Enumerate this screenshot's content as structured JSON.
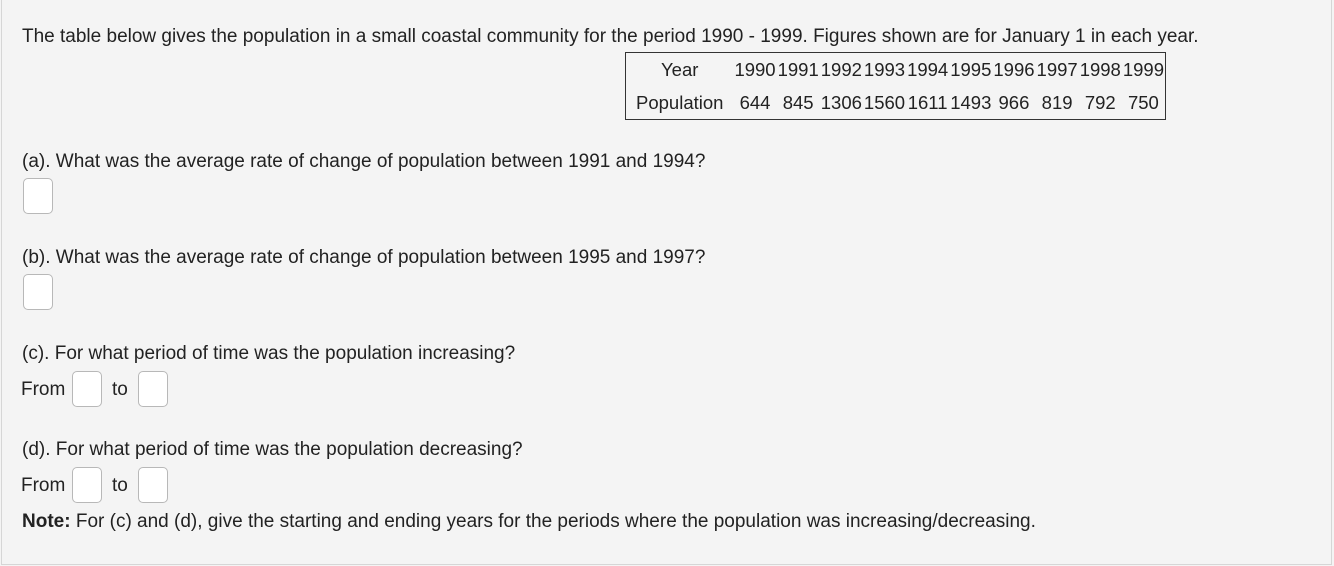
{
  "intro_text": "The table below gives the population in a small coastal community for the period 1990 - 1999. Figures shown are for January 1 in each year.",
  "table": {
    "year_label": "Year",
    "population_label": "Population",
    "years": [
      "1990",
      "1991",
      "1992",
      "1993",
      "1994",
      "1995",
      "1996",
      "1997",
      "1998",
      "1999"
    ],
    "populations": [
      "644",
      "845",
      "1306",
      "1560",
      "1611",
      "1493",
      "966",
      "819",
      "792",
      "750"
    ]
  },
  "questions": {
    "a": "(a). What was the average rate of change of population between 1991 and 1994?",
    "b": "(b). What was the average rate of change of population between 1995 and 1997?",
    "c": "(c). For what period of time was the population increasing?",
    "d": "(d). For what period of time was the population decreasing?"
  },
  "labels": {
    "from": "From",
    "to": "to"
  },
  "note": {
    "label": "Note:",
    "text": " For (c) and (d), give the starting and ending years for the periods where the population was increasing/decreasing."
  }
}
